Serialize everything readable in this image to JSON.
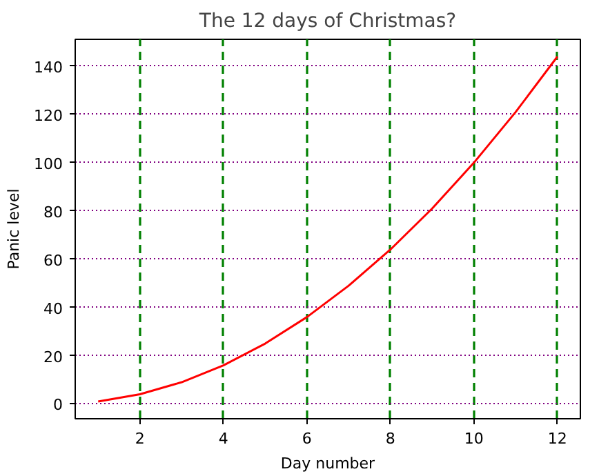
{
  "chart_data": {
    "type": "line",
    "title": "The 12 days of Christmas?",
    "xlabel": "Day number",
    "ylabel": "Panic level",
    "x": [
      1,
      2,
      3,
      4,
      5,
      6,
      7,
      8,
      9,
      10,
      11,
      12
    ],
    "series": [
      {
        "color": "#ff0000",
        "values": [
          1,
          4,
          9,
          16,
          25,
          36,
          49,
          64,
          81,
          100,
          121,
          144
        ]
      }
    ],
    "xlim": [
      0.45,
      12.55
    ],
    "ylim": [
      -6.15,
      151.15
    ],
    "xticks": [
      2,
      4,
      6,
      8,
      10,
      12
    ],
    "yticks": [
      0,
      20,
      40,
      60,
      80,
      100,
      120,
      140
    ],
    "grid": true,
    "marker": "none",
    "line_style": "solid"
  }
}
